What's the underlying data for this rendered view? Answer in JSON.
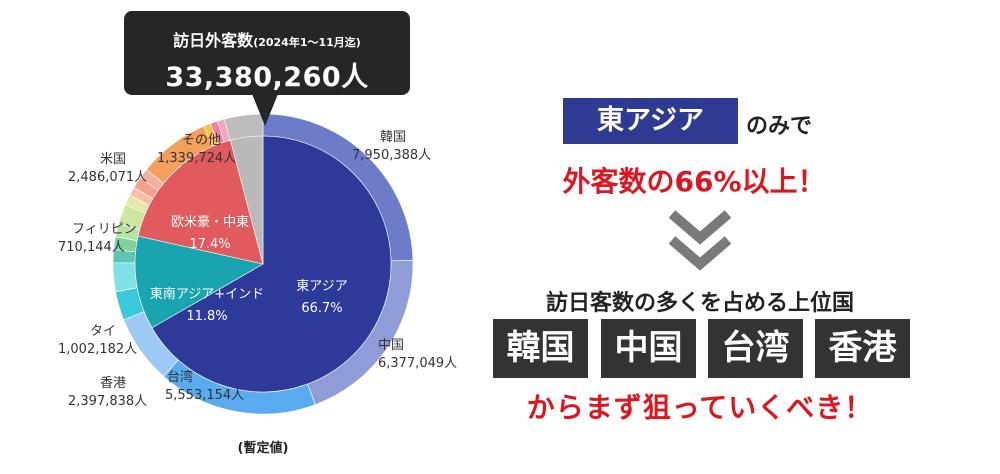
{
  "callout": {
    "title": "訪日外客数",
    "period": "(2024年1〜11月迄)",
    "total": "33,380,260人"
  },
  "note": "(暫定値)",
  "chart_data": {
    "type": "pie",
    "inner": [
      {
        "label": "東アジア",
        "percent": "66.7%",
        "value": 66.7,
        "color": "#2d3a9a"
      },
      {
        "label": "東南アジア+インド",
        "percent": "11.8%",
        "value": 11.8,
        "color": "#1aa4b0"
      },
      {
        "label": "欧米豪・中東",
        "percent": "17.4%",
        "value": 17.4,
        "color": "#e05a5e"
      },
      {
        "label": "",
        "percent": "",
        "value": 4.1,
        "color": "#b9b9b9"
      }
    ],
    "outer": [
      {
        "label": "韓国",
        "value": 7950388,
        "display": "7,950,388人",
        "color": "#6c7cc8"
      },
      {
        "label": "中国",
        "value": 6377049,
        "display": "6,377,049人",
        "color": "#8f9cd8"
      },
      {
        "label": "台湾",
        "value": 5553154,
        "display": "5,553,154人",
        "color": "#5aaaf0"
      },
      {
        "label": "香港",
        "value": 2397838,
        "display": "2,397,838人",
        "color": "#9dcaf5"
      },
      {
        "label": "",
        "value": 1000000,
        "display": "",
        "color": "#3bc8d8"
      },
      {
        "label": "タイ",
        "value": 1002182,
        "display": "1,002,182人",
        "color": "#7fe0e6"
      },
      {
        "label": "",
        "value": 450000,
        "display": "",
        "color": "#5ec4b4"
      },
      {
        "label": "",
        "value": 450000,
        "display": "",
        "color": "#7dd39a"
      },
      {
        "label": "",
        "value": 450000,
        "display": "",
        "color": "#b5e3a6"
      },
      {
        "label": "フィリピン",
        "value": 710144,
        "display": "710,144人",
        "color": "#cce8a0"
      },
      {
        "label": "",
        "value": 350000,
        "display": "",
        "color": "#e6e6a8"
      },
      {
        "label": "",
        "value": 300000,
        "display": "",
        "color": "#f6c0a8"
      },
      {
        "label": "",
        "value": 400000,
        "display": "",
        "color": "#f2a28a"
      },
      {
        "label": "",
        "value": 350000,
        "display": "",
        "color": "#f0b0a0"
      },
      {
        "label": "米国",
        "value": 2486071,
        "display": "2,486,071人",
        "color": "#f5a05a"
      },
      {
        "label": "",
        "value": 250000,
        "display": "",
        "color": "#f6c04a"
      },
      {
        "label": "",
        "value": 250000,
        "display": "",
        "color": "#ef7fa0"
      },
      {
        "label": "",
        "value": 250000,
        "display": "",
        "color": "#f2a7c2"
      },
      {
        "label": "その他",
        "value": 1339724,
        "display": "1,339,724人",
        "color": "#bdbdbd"
      }
    ]
  },
  "right": {
    "east_asia_box": "東アジア",
    "east_asia_suffix": "のみで",
    "headline": "外客数の66%以上！",
    "top_title": "訪日客数の多くを占める上位国",
    "countries": [
      "韓国",
      "中国",
      "台湾",
      "香港"
    ],
    "cta": "からまず狙っていくべき！"
  }
}
